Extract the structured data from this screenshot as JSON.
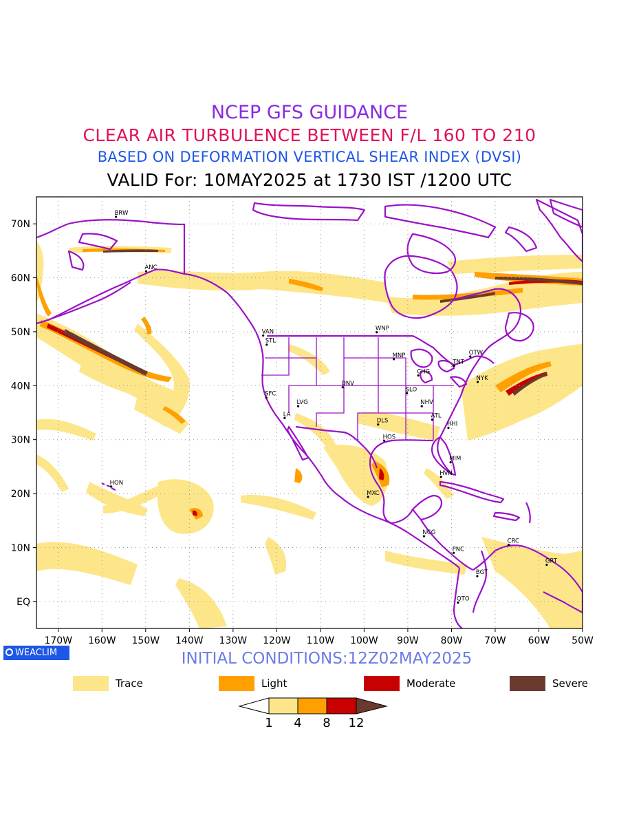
{
  "header": {
    "line1": "NCEP GFS GUIDANCE",
    "line2": "CLEAR AIR TURBULENCE BETWEEN F/L 160 TO 210",
    "line3": "BASED ON DEFORMATION VERTICAL SHEAR INDEX (DVSI)",
    "line4": "VALID For: 10MAY2025 at 1730 IST /1200 UTC"
  },
  "map": {
    "lon_min": -175,
    "lon_max": -50,
    "lat_min": -5,
    "lat_max": 75,
    "lon_ticks": [
      {
        "lon": -170,
        "label": "170W"
      },
      {
        "lon": -160,
        "label": "160W"
      },
      {
        "lon": -150,
        "label": "150W"
      },
      {
        "lon": -140,
        "label": "140W"
      },
      {
        "lon": -130,
        "label": "130W"
      },
      {
        "lon": -120,
        "label": "120W"
      },
      {
        "lon": -110,
        "label": "110W"
      },
      {
        "lon": -100,
        "label": "100W"
      },
      {
        "lon": -90,
        "label": "90W"
      },
      {
        "lon": -80,
        "label": "80W"
      },
      {
        "lon": -70,
        "label": "70W"
      },
      {
        "lon": -60,
        "label": "60W"
      },
      {
        "lon": -50,
        "label": "50W"
      }
    ],
    "lat_ticks": [
      {
        "lat": 70,
        "label": "70N"
      },
      {
        "lat": 60,
        "label": "60N"
      },
      {
        "lat": 50,
        "label": "50N"
      },
      {
        "lat": 40,
        "label": "40N"
      },
      {
        "lat": 30,
        "label": "30N"
      },
      {
        "lat": 20,
        "label": "20N"
      },
      {
        "lat": 10,
        "label": "10N"
      },
      {
        "lat": 0,
        "label": "EQ"
      }
    ],
    "stations": [
      {
        "code": "BRW",
        "lon": -156.8,
        "lat": 71.3
      },
      {
        "code": "ANC",
        "lon": -149.9,
        "lat": 61.2
      },
      {
        "code": "VAN",
        "lon": -123.1,
        "lat": 49.3
      },
      {
        "code": "STL",
        "lon": -122.3,
        "lat": 47.6
      },
      {
        "code": "WNP",
        "lon": -97.1,
        "lat": 49.9
      },
      {
        "code": "MNP",
        "lon": -93.2,
        "lat": 44.9
      },
      {
        "code": "TNT",
        "lon": -79.4,
        "lat": 43.7
      },
      {
        "code": "OTW",
        "lon": -75.7,
        "lat": 45.4
      },
      {
        "code": "CHG",
        "lon": -87.6,
        "lat": 41.9
      },
      {
        "code": "NYK",
        "lon": -74.0,
        "lat": 40.7
      },
      {
        "code": "DNV",
        "lon": -104.9,
        "lat": 39.7
      },
      {
        "code": "SFC",
        "lon": -122.4,
        "lat": 37.8
      },
      {
        "code": "LVG",
        "lon": -115.1,
        "lat": 36.2
      },
      {
        "code": "SLO",
        "lon": -90.2,
        "lat": 38.6
      },
      {
        "code": "NHV",
        "lon": -86.8,
        "lat": 36.2
      },
      {
        "code": "LA",
        "lon": -118.2,
        "lat": 34.0
      },
      {
        "code": "ATL",
        "lon": -84.4,
        "lat": 33.7
      },
      {
        "code": "DLS",
        "lon": -96.8,
        "lat": 32.8
      },
      {
        "code": "HHI",
        "lon": -80.7,
        "lat": 32.2
      },
      {
        "code": "HOS",
        "lon": -95.4,
        "lat": 29.8
      },
      {
        "code": "MIM",
        "lon": -80.2,
        "lat": 25.8
      },
      {
        "code": "HVN",
        "lon": -82.4,
        "lat": 23.1
      },
      {
        "code": "HON",
        "lon": -157.9,
        "lat": 21.3
      },
      {
        "code": "MXC",
        "lon": -99.1,
        "lat": 19.4
      },
      {
        "code": "NCG",
        "lon": -86.3,
        "lat": 12.1
      },
      {
        "code": "CRC",
        "lon": -66.9,
        "lat": 10.5
      },
      {
        "code": "PNC",
        "lon": -79.5,
        "lat": 9.0
      },
      {
        "code": "GRT",
        "lon": -58.2,
        "lat": 6.8
      },
      {
        "code": "BGT",
        "lon": -74.1,
        "lat": 4.7
      },
      {
        "code": "QTO",
        "lon": -78.5,
        "lat": -0.2
      }
    ]
  },
  "branding": {
    "label": "WEACLIM"
  },
  "initial_conditions": "INITIAL CONDITIONS:12Z02MAY2025",
  "legend": {
    "items": [
      {
        "label": "Trace",
        "color": "#fde68a"
      },
      {
        "label": "Light",
        "color": "#ffa000"
      },
      {
        "label": "Moderate",
        "color": "#c80000"
      },
      {
        "label": "Severe",
        "color": "#6b3a2e"
      }
    ],
    "colorbar_ticks": [
      "1",
      "4",
      "8",
      "12"
    ]
  },
  "colors": {
    "coastline": "#9c10c8",
    "trace": "#fde68a",
    "light": "#ffa000",
    "moderate": "#c80000",
    "severe": "#6b3a2e"
  }
}
